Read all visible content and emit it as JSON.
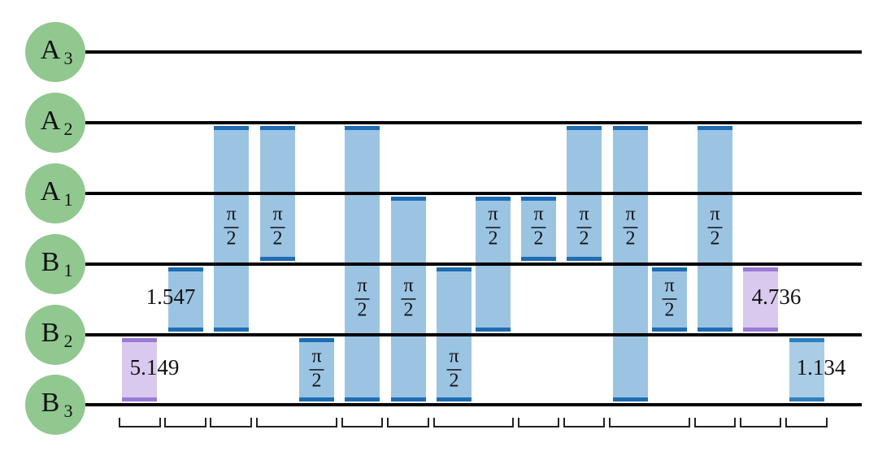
{
  "wires": [
    {
      "letter": "A",
      "sub": "3"
    },
    {
      "letter": "A",
      "sub": "2"
    },
    {
      "letter": "A",
      "sub": "1"
    },
    {
      "letter": "B",
      "sub": "1"
    },
    {
      "letter": "B",
      "sub": "2"
    },
    {
      "letter": "B",
      "sub": "3"
    }
  ],
  "gates": [
    {
      "text": "5.149"
    },
    {
      "text": "1.547"
    },
    {
      "numerator": "π",
      "denominator": "2"
    },
    {
      "numerator": "π",
      "denominator": "2"
    },
    {
      "numerator": "π",
      "denominator": "2"
    },
    {
      "numerator": "π",
      "denominator": "2"
    },
    {
      "numerator": "π",
      "denominator": "2"
    },
    {
      "numerator": "π",
      "denominator": "2"
    },
    {
      "numerator": "π",
      "denominator": "2"
    },
    {
      "numerator": "π",
      "denominator": "2"
    },
    {
      "numerator": "π",
      "denominator": "2"
    },
    {
      "numerator": "π",
      "denominator": "2"
    },
    {
      "numerator": "π",
      "denominator": "2"
    },
    {
      "numerator": "π",
      "denominator": "2"
    },
    {
      "text": "4.736"
    },
    {
      "text": "1.134"
    }
  ]
}
